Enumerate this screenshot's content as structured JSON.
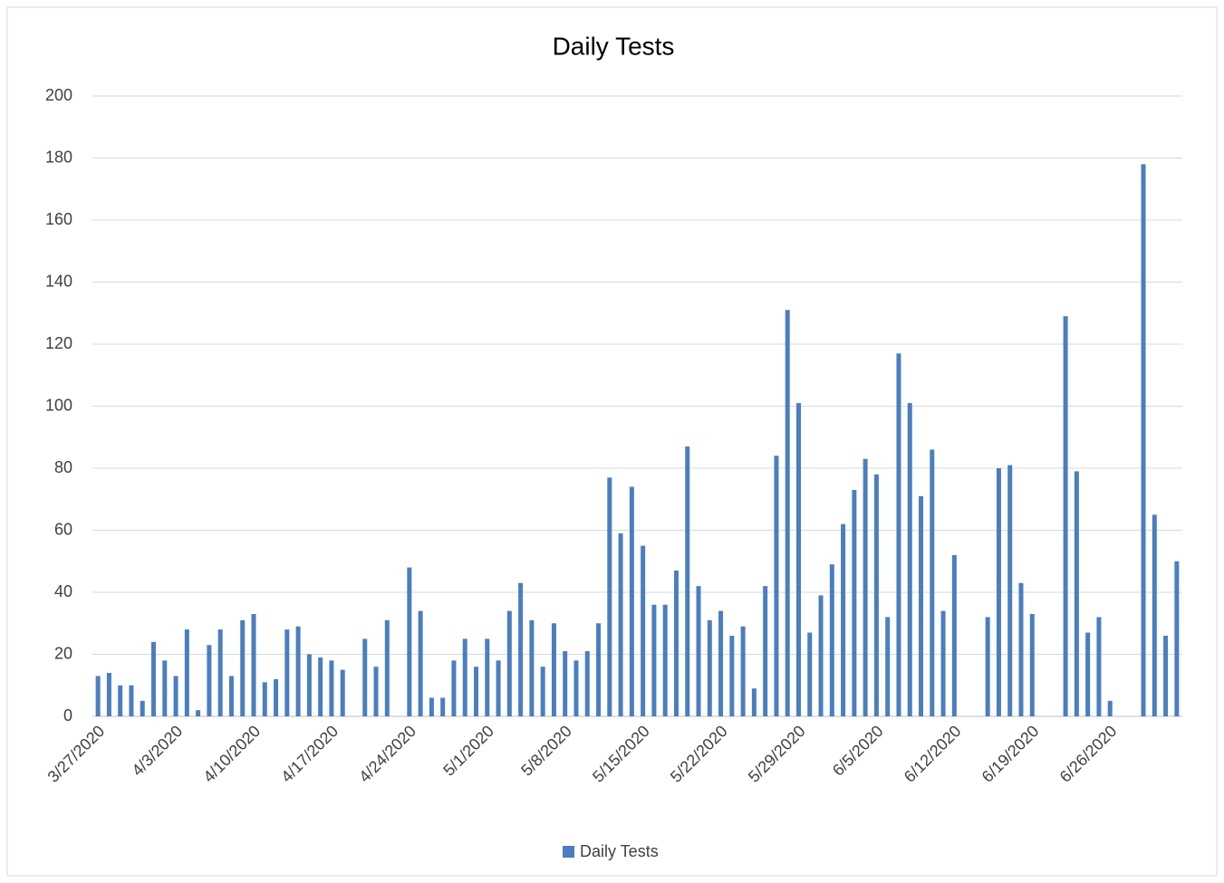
{
  "chart_data": {
    "type": "bar",
    "title": "Daily Tests",
    "categories": [
      "3/27/2020",
      null,
      null,
      null,
      null,
      null,
      null,
      "4/3/2020",
      null,
      null,
      null,
      null,
      null,
      null,
      "4/10/2020",
      null,
      null,
      null,
      null,
      null,
      null,
      "4/17/2020",
      null,
      null,
      null,
      null,
      null,
      null,
      "4/24/2020",
      null,
      null,
      null,
      null,
      null,
      null,
      "5/1/2020",
      null,
      null,
      null,
      null,
      null,
      null,
      "5/8/2020",
      null,
      null,
      null,
      null,
      null,
      null,
      "5/15/2020",
      null,
      null,
      null,
      null,
      null,
      null,
      "5/22/2020",
      null,
      null,
      null,
      null,
      null,
      null,
      "5/29/2020",
      null,
      null,
      null,
      null,
      null,
      null,
      "6/5/2020",
      null,
      null,
      null,
      null,
      null,
      null,
      "6/12/2020",
      null,
      null,
      null,
      null,
      null,
      null,
      "6/19/2020",
      null,
      null,
      null,
      null,
      null,
      null,
      "6/26/2020",
      null,
      null,
      null,
      null,
      null,
      null
    ],
    "series": [
      {
        "name": "Daily Tests",
        "color": "#4a7ebf",
        "values": [
          13,
          14,
          10,
          10,
          5,
          24,
          18,
          13,
          28,
          2,
          23,
          28,
          13,
          31,
          33,
          11,
          12,
          28,
          29,
          20,
          19,
          18,
          15,
          null,
          25,
          16,
          31,
          null,
          48,
          34,
          6,
          6,
          18,
          25,
          16,
          25,
          18,
          34,
          43,
          31,
          16,
          30,
          21,
          18,
          21,
          30,
          77,
          59,
          74,
          55,
          36,
          36,
          47,
          87,
          42,
          31,
          34,
          26,
          29,
          9,
          42,
          84,
          131,
          101,
          27,
          39,
          49,
          62,
          73,
          83,
          78,
          32,
          117,
          101,
          71,
          86,
          34,
          52,
          null,
          null,
          32,
          80,
          81,
          43,
          33,
          null,
          null,
          129,
          79,
          27,
          32,
          5,
          null,
          null,
          178,
          65,
          26,
          50
        ]
      }
    ],
    "ylim": [
      0,
      200
    ],
    "yticks": [
      0,
      20,
      40,
      60,
      80,
      100,
      120,
      140,
      160,
      180,
      200
    ],
    "grid": true,
    "legend": "bottom"
  }
}
